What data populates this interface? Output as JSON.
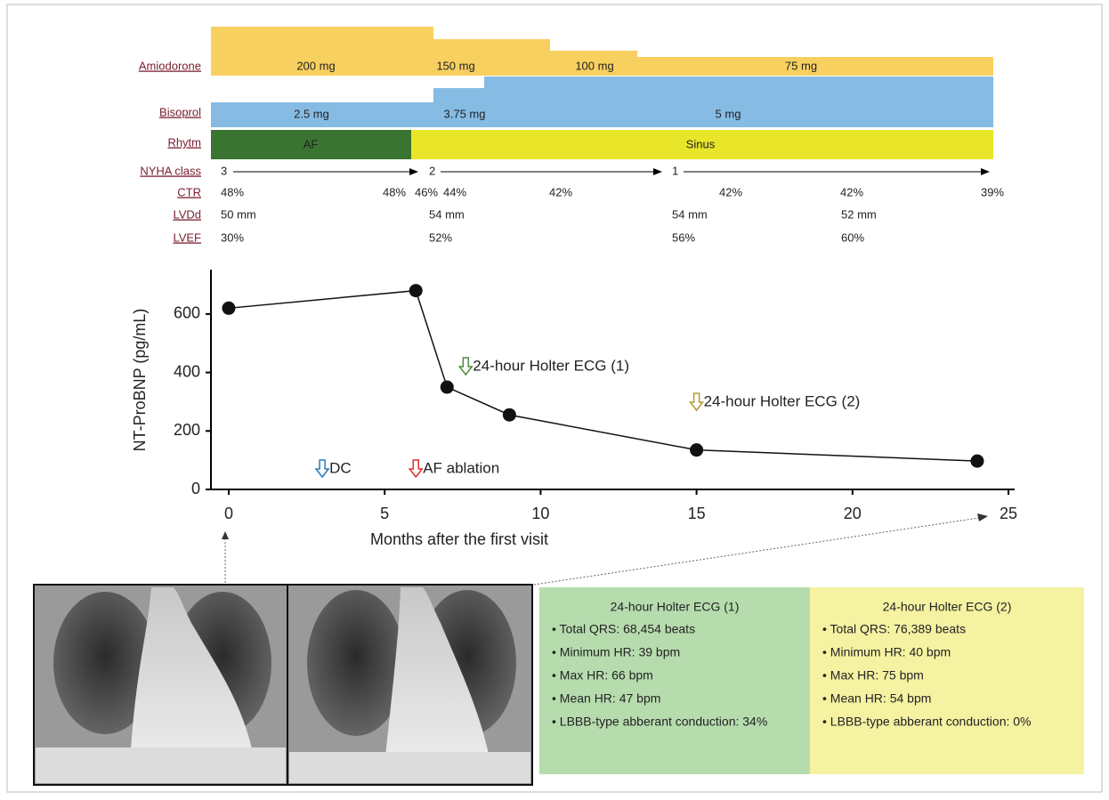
{
  "timeline": [
    {
      "label": "Amiodorone",
      "segments": [
        {
          "label": "200 mg",
          "color": "#f8d060"
        },
        {
          "label": "150 mg",
          "color": "#f8d060"
        },
        {
          "label": "100 mg",
          "color": "#f8d060"
        },
        {
          "label": "75 mg",
          "color": "#f8d060"
        }
      ]
    },
    {
      "label": "Bisoprol",
      "segments": [
        {
          "label": "2.5 mg",
          "color": "#86bbe4"
        },
        {
          "label": "3.75 mg",
          "color": "#86bbe4"
        },
        {
          "label": "5 mg",
          "color": "#86bbe4"
        }
      ]
    },
    {
      "label": "Rhytm",
      "segments": [
        {
          "label": "AF",
          "color": "#3a7431"
        },
        {
          "label": "Sinus",
          "color": "#e9e62a"
        }
      ]
    }
  ],
  "nyha": {
    "label": "NYHA class",
    "values": [
      "3",
      "2",
      "1"
    ]
  },
  "measures": [
    {
      "label": "CTR",
      "values": [
        "48%",
        "48%",
        "46%",
        "44%",
        "42%",
        "42%",
        "42%",
        "39%"
      ]
    },
    {
      "label": "LVDd",
      "values": [
        "50 mm",
        "54 mm",
        "54 mm",
        "52 mm"
      ]
    },
    {
      "label": "LVEF",
      "values": [
        "30%",
        "52%",
        "56%",
        "60%"
      ]
    }
  ],
  "chart_data": {
    "type": "line",
    "y_label": "NT-ProBNP (pg/mL)",
    "x_label": "Months after the first visit",
    "x": [
      0,
      6,
      7,
      9,
      15,
      24
    ],
    "values": [
      620,
      680,
      350,
      255,
      135,
      97
    ],
    "color": "#111111",
    "xlim": [
      -0.57,
      25.2
    ],
    "ylim": [
      0,
      750
    ],
    "xticks": [
      0,
      5,
      10,
      15,
      20,
      25
    ],
    "yticks": [
      0,
      200,
      400,
      600
    ],
    "annotations": [
      {
        "text": "DC",
        "color": "#2a7ab8"
      },
      {
        "text": "AF ablation",
        "color": "#e03030"
      },
      {
        "text": "24-hour Holter ECG (1)",
        "color": "#4f8a3c"
      },
      {
        "text": "24-hour Holter ECG (2)",
        "color": "#b09a30"
      }
    ]
  },
  "holter": [
    {
      "title": "24-hour Holter ECG (1)",
      "color": "#b6dcae",
      "title_color": "#4f8a3c",
      "items": [
        "• Total QRS: 68,454 beats",
        "• Minimum HR: 39 bpm",
        "• Max HR: 66 bpm",
        "• Mean HR: 47 bpm",
        "• LBBB-type abberant conduction: 34%"
      ]
    },
    {
      "title": "24-hour Holter ECG (2)",
      "color": "#f5f2a2",
      "title_color": "#a09848",
      "items": [
        "• Total QRS: 76,389 beats",
        "• Minimum HR: 40 bpm",
        "• Max HR: 75 bpm",
        "• Mean HR: 54 bpm",
        "• LBBB-type abberant conduction: 0%"
      ]
    }
  ]
}
